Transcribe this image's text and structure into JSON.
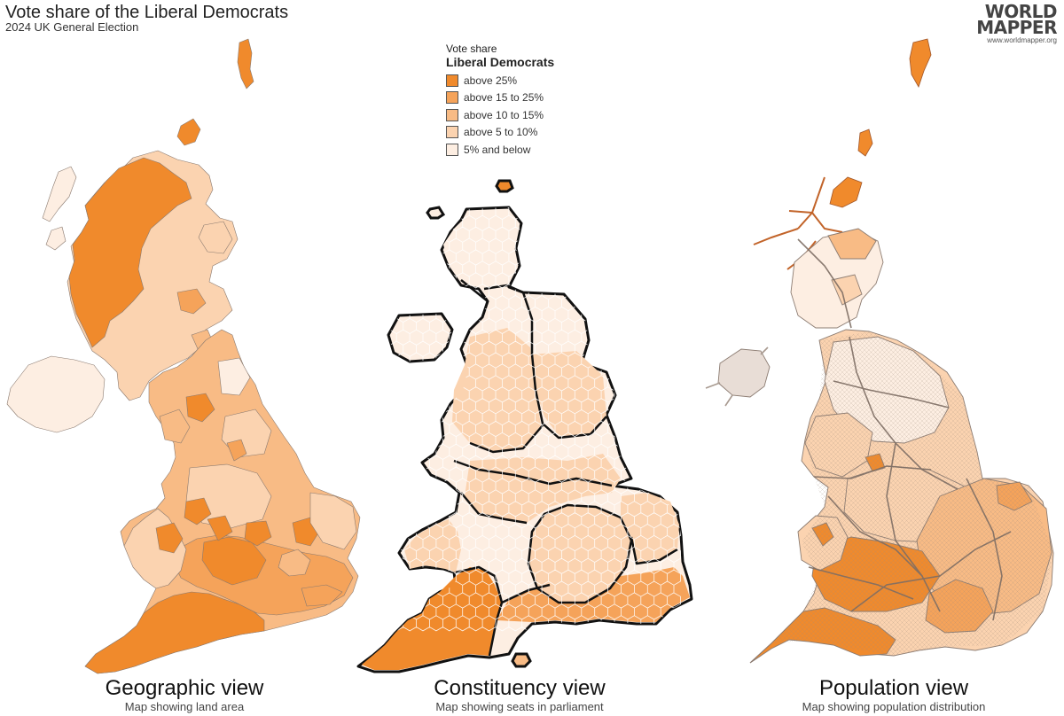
{
  "header": {
    "title": "Vote share of the Liberal Democrats",
    "subtitle": "2024 UK General Election"
  },
  "logo": {
    "line1": "WORLD",
    "line2": "MAPPER",
    "url": "www.worldmapper.org"
  },
  "legend": {
    "title1": "Vote share",
    "title2": "Liberal Democrats",
    "items": [
      {
        "label": "above 25%",
        "color": "#f08a2c"
      },
      {
        "label": "above 15 to 25%",
        "color": "#f5a35a"
      },
      {
        "label": "above 10 to 15%",
        "color": "#f8bb85"
      },
      {
        "label": "above 5 to 10%",
        "color": "#fbd3b0"
      },
      {
        "label": "5% and below",
        "color": "#fdeee2"
      }
    ]
  },
  "maps": {
    "geographic": {
      "title": "Geographic view",
      "subtitle": "Map showing land area"
    },
    "constituency": {
      "title": "Constituency view",
      "subtitle": "Map showing seats in parliament"
    },
    "population": {
      "title": "Population view",
      "subtitle": "Map showing population distribution"
    }
  }
}
